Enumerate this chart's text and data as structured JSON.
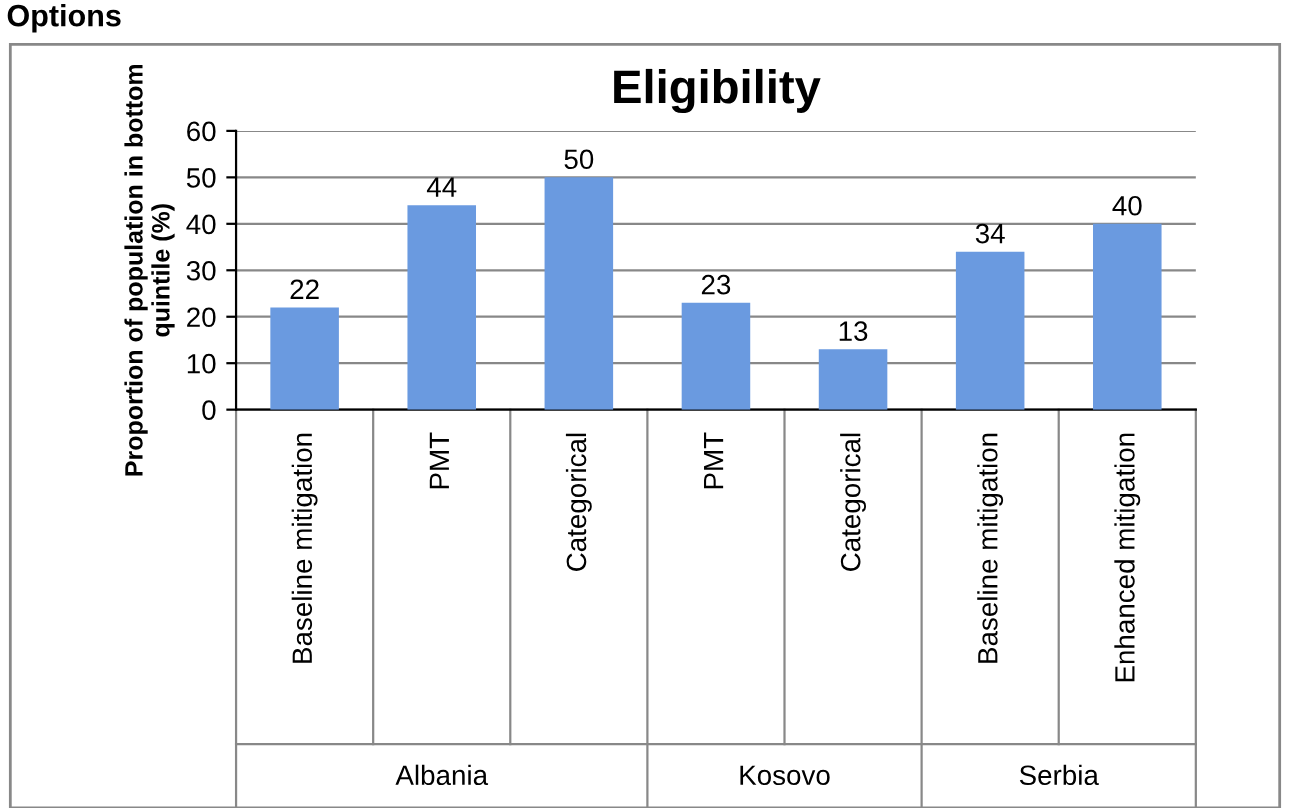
{
  "chart_data": {
    "type": "bar",
    "title": "Eligibility",
    "ylabel": "Proportion of population in bottom\nquintile (%)",
    "categories": [
      "Baseline mitigation",
      "PMT",
      "Categorical",
      "PMT",
      "Categorical",
      "Baseline mitigation",
      "Enhanced mitigation"
    ],
    "values": [
      22,
      44,
      50,
      23,
      13,
      34,
      40
    ],
    "color": "#6a9ae0",
    "ylim": [
      0,
      60
    ],
    "yticks": [
      0,
      10,
      20,
      30,
      40,
      50,
      60
    ],
    "grid": "y",
    "data_labels": true,
    "annotations": [
      "Options",
      "Albania",
      "Kosovo",
      "Serbia"
    ]
  }
}
